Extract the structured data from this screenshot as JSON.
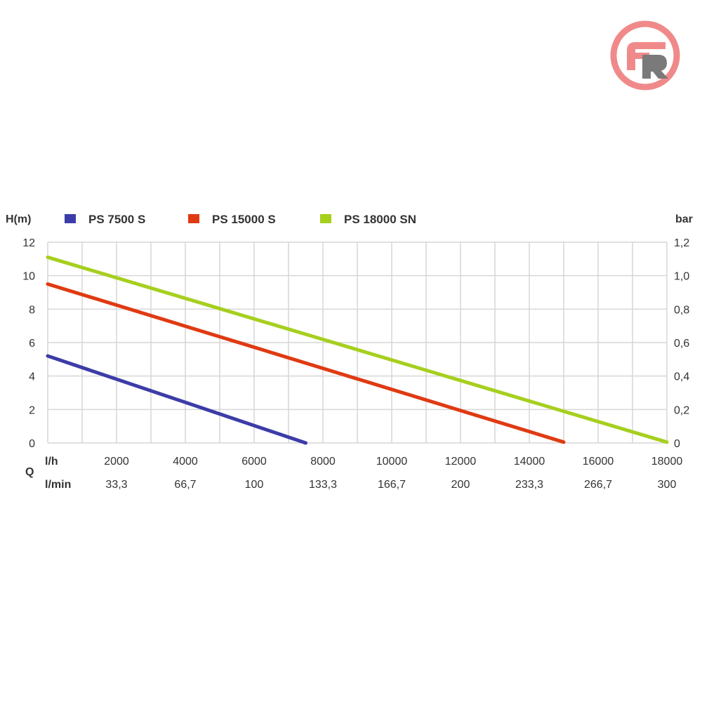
{
  "logo": {
    "text": "ER",
    "ring_color": "#f08a8a",
    "letter_color": "#7a7a7a"
  },
  "chart_data": {
    "type": "line",
    "ylabel": "H(m)",
    "y2label": "bar",
    "xlabel": "Q",
    "x_row1_unit": "l/h",
    "x_row2_unit": "l/min",
    "xlim": [
      0,
      18000
    ],
    "ylim": [
      0,
      12
    ],
    "y2lim": [
      0,
      1.2
    ],
    "xticks": [
      2000,
      4000,
      6000,
      8000,
      10000,
      12000,
      14000,
      16000,
      18000
    ],
    "xticks_lmin": [
      "33,3",
      "66,7",
      "100",
      "133,3",
      "166,7",
      "200",
      "233,3",
      "266,7",
      "300"
    ],
    "yticks": [
      "0",
      "2",
      "4",
      "6",
      "8",
      "10",
      "12"
    ],
    "y2ticks": [
      "0",
      "0,2",
      "0,4",
      "0,6",
      "0,8",
      "1,0",
      "1,2"
    ],
    "grid": true,
    "legend_position": "top",
    "series": [
      {
        "name": "PS 7500 S",
        "color": "#3c3ca8",
        "x": [
          0,
          7500
        ],
        "y": [
          5.2,
          0
        ]
      },
      {
        "name": "PS 15000 S",
        "color": "#e03a12",
        "x": [
          0,
          15000
        ],
        "y": [
          9.5,
          0.05
        ]
      },
      {
        "name": "PS 18000 SN",
        "color": "#a6cf1e",
        "x": [
          0,
          18000
        ],
        "y": [
          11.1,
          0.05
        ]
      }
    ]
  }
}
